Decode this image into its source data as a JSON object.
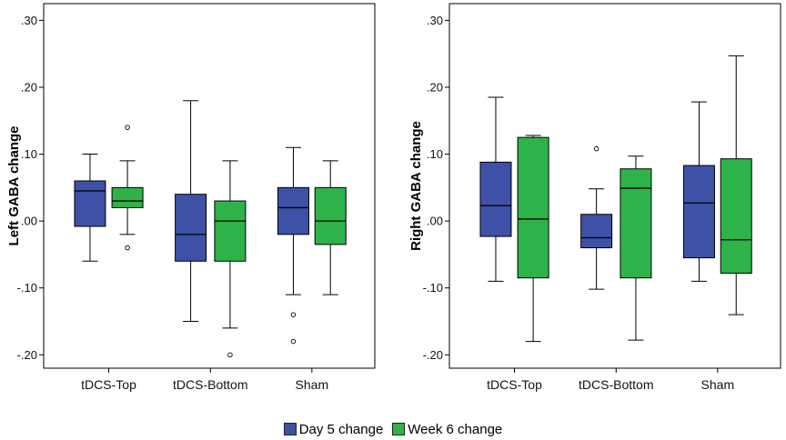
{
  "chart_data": [
    {
      "type": "boxplot",
      "title": "",
      "ylabel": "Left GABA change",
      "xlabel": "",
      "ylim": [
        -0.22,
        0.325
      ],
      "yticks": [
        ".30",
        ".20",
        ".10",
        ".00",
        "-.10",
        "-.20"
      ],
      "ytick_values": [
        0.3,
        0.2,
        0.1,
        0.0,
        -0.1,
        -0.2
      ],
      "categories": [
        "tDCS-Top",
        "tDCS-Bottom",
        "Sham"
      ],
      "series": [
        {
          "name": "Day 5 change",
          "boxes": [
            {
              "whisker_low": -0.06,
              "q1": -0.008,
              "median": 0.045,
              "q3": 0.06,
              "whisker_high": 0.1,
              "outliers": []
            },
            {
              "whisker_low": -0.15,
              "q1": -0.06,
              "median": -0.02,
              "q3": 0.04,
              "whisker_high": 0.18,
              "outliers": []
            },
            {
              "whisker_low": -0.11,
              "q1": -0.02,
              "median": 0.02,
              "q3": 0.05,
              "whisker_high": 0.11,
              "outliers": [
                -0.14,
                -0.18
              ]
            }
          ]
        },
        {
          "name": "Week 6 change",
          "boxes": [
            {
              "whisker_low": -0.02,
              "q1": 0.02,
              "median": 0.03,
              "q3": 0.05,
              "whisker_high": 0.09,
              "outliers": [
                0.14,
                -0.04
              ]
            },
            {
              "whisker_low": -0.16,
              "q1": -0.06,
              "median": 0.0,
              "q3": 0.03,
              "whisker_high": 0.09,
              "outliers": [
                -0.2
              ]
            },
            {
              "whisker_low": -0.11,
              "q1": -0.035,
              "median": 0.0,
              "q3": 0.05,
              "whisker_high": 0.09,
              "outliers": []
            }
          ]
        }
      ]
    },
    {
      "type": "boxplot",
      "title": "",
      "ylabel": "Right GABA change",
      "xlabel": "",
      "ylim": [
        -0.22,
        0.325
      ],
      "yticks": [
        ".30",
        ".20",
        ".10",
        ".00",
        "-.10",
        "-.20"
      ],
      "ytick_values": [
        0.3,
        0.2,
        0.1,
        0.0,
        -0.1,
        -0.2
      ],
      "categories": [
        "tDCS-Top",
        "tDCS-Bottom",
        "Sham"
      ],
      "series": [
        {
          "name": "Day 5 change",
          "boxes": [
            {
              "whisker_low": -0.09,
              "q1": -0.023,
              "median": 0.023,
              "q3": 0.088,
              "whisker_high": 0.185,
              "outliers": []
            },
            {
              "whisker_low": -0.102,
              "q1": -0.04,
              "median": -0.025,
              "q3": 0.01,
              "whisker_high": 0.048,
              "outliers": [
                0.108
              ]
            },
            {
              "whisker_low": -0.09,
              "q1": -0.055,
              "median": 0.027,
              "q3": 0.083,
              "whisker_high": 0.178,
              "outliers": []
            }
          ]
        },
        {
          "name": "Week 6 change",
          "boxes": [
            {
              "whisker_low": -0.18,
              "q1": -0.085,
              "median": 0.003,
              "q3": 0.125,
              "whisker_high": 0.128,
              "outliers": []
            },
            {
              "whisker_low": -0.178,
              "q1": -0.085,
              "median": 0.049,
              "q3": 0.078,
              "whisker_high": 0.097,
              "outliers": []
            },
            {
              "whisker_low": -0.14,
              "q1": -0.078,
              "median": -0.028,
              "q3": 0.093,
              "whisker_high": 0.247,
              "outliers": []
            }
          ]
        }
      ]
    }
  ],
  "legend": {
    "placement": "bottom-center",
    "items": [
      {
        "label": "Day 5 change",
        "color": "#3F51A6"
      },
      {
        "label": "Week 6 change",
        "color": "#2DB34A"
      }
    ]
  }
}
